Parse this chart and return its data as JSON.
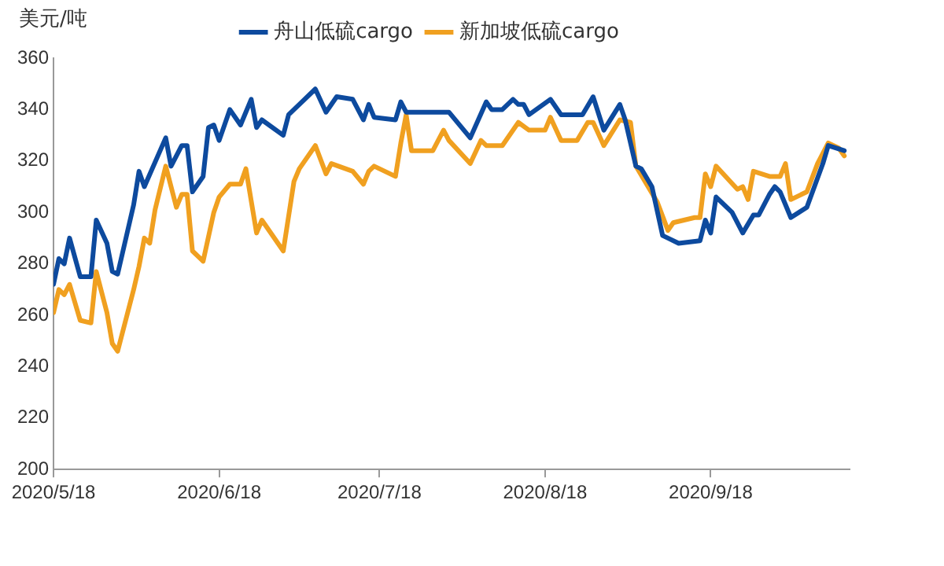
{
  "chart_data": {
    "type": "line",
    "ylabel": "美元/吨",
    "xlim": [
      "2020-05-18",
      "2020-10-14"
    ],
    "xticks": [
      {
        "value": "2020-05-18",
        "label": "2020/5/18"
      },
      {
        "value": "2020-06-18",
        "label": "2020/6/18"
      },
      {
        "value": "2020-07-18",
        "label": "2020/7/18"
      },
      {
        "value": "2020-08-18",
        "label": "2020/8/18"
      },
      {
        "value": "2020-09-18",
        "label": "2020/9/18"
      }
    ],
    "ylim": [
      200,
      360
    ],
    "yticks": [
      200,
      220,
      240,
      260,
      280,
      300,
      320,
      340,
      360
    ],
    "grid": false,
    "legend": "top",
    "marker": "none",
    "line_style": "solid",
    "series": [
      {
        "name": "舟山低硫cargo",
        "color": "#0d4a9e",
        "x": [
          "2020-05-18",
          "2020-05-19",
          "2020-05-20",
          "2020-05-21",
          "2020-05-23",
          "2020-05-25",
          "2020-05-26",
          "2020-05-28",
          "2020-05-29",
          "2020-05-30",
          "2020-06-02",
          "2020-06-03",
          "2020-06-04",
          "2020-06-08",
          "2020-06-09",
          "2020-06-11",
          "2020-06-12",
          "2020-06-13",
          "2020-06-15",
          "2020-06-16",
          "2020-06-17",
          "2020-06-18",
          "2020-06-20",
          "2020-06-22",
          "2020-06-24",
          "2020-06-25",
          "2020-06-26",
          "2020-06-30",
          "2020-07-01",
          "2020-07-03",
          "2020-07-06",
          "2020-07-08",
          "2020-07-10",
          "2020-07-13",
          "2020-07-15",
          "2020-07-16",
          "2020-07-17",
          "2020-07-21",
          "2020-07-22",
          "2020-07-23",
          "2020-07-30",
          "2020-07-31",
          "2020-08-04",
          "2020-08-07",
          "2020-08-08",
          "2020-08-10",
          "2020-08-12",
          "2020-08-13",
          "2020-08-14",
          "2020-08-15",
          "2020-08-19",
          "2020-08-21",
          "2020-08-25",
          "2020-08-27",
          "2020-08-29",
          "2020-09-01",
          "2020-09-02",
          "2020-09-04",
          "2020-09-05",
          "2020-09-07",
          "2020-09-09",
          "2020-09-10",
          "2020-09-12",
          "2020-09-16",
          "2020-09-17",
          "2020-09-18",
          "2020-09-19",
          "2020-09-22",
          "2020-09-24",
          "2020-09-26",
          "2020-09-27",
          "2020-09-29",
          "2020-09-30",
          "2020-10-01",
          "2020-10-03",
          "2020-10-06",
          "2020-10-09",
          "2020-10-10",
          "2020-10-13"
        ],
        "values": [
          272,
          282,
          280,
          290,
          275,
          275,
          297,
          288,
          277,
          276,
          303,
          316,
          310,
          329,
          318,
          326,
          326,
          308,
          314,
          333,
          334,
          328,
          340,
          334,
          344,
          333,
          336,
          330,
          338,
          342,
          348,
          339,
          345,
          344,
          336,
          342,
          337,
          336,
          343,
          339,
          339,
          339,
          329,
          343,
          340,
          340,
          344,
          342,
          342,
          338,
          344,
          338,
          338,
          345,
          332,
          342,
          336,
          318,
          317,
          310,
          291,
          290,
          288,
          289,
          297,
          292,
          306,
          300,
          292,
          299,
          299,
          307,
          310,
          308,
          298,
          302,
          319,
          326,
          324
        ]
      },
      {
        "name": "新加坡低硫cargo",
        "color": "#f0a020",
        "x": [
          "2020-05-18",
          "2020-05-19",
          "2020-05-20",
          "2020-05-21",
          "2020-05-23",
          "2020-05-25",
          "2020-05-26",
          "2020-05-28",
          "2020-05-29",
          "2020-05-30",
          "2020-06-02",
          "2020-06-03",
          "2020-06-04",
          "2020-06-05",
          "2020-06-06",
          "2020-06-08",
          "2020-06-10",
          "2020-06-11",
          "2020-06-12",
          "2020-06-13",
          "2020-06-15",
          "2020-06-17",
          "2020-06-18",
          "2020-06-20",
          "2020-06-22",
          "2020-06-23",
          "2020-06-25",
          "2020-06-26",
          "2020-06-30",
          "2020-07-02",
          "2020-07-03",
          "2020-07-06",
          "2020-07-08",
          "2020-07-09",
          "2020-07-13",
          "2020-07-15",
          "2020-07-16",
          "2020-07-17",
          "2020-07-21",
          "2020-07-22",
          "2020-07-23",
          "2020-07-24",
          "2020-07-28",
          "2020-07-30",
          "2020-07-31",
          "2020-08-04",
          "2020-08-06",
          "2020-08-07",
          "2020-08-10",
          "2020-08-13",
          "2020-08-15",
          "2020-08-18",
          "2020-08-19",
          "2020-08-21",
          "2020-08-24",
          "2020-08-26",
          "2020-08-27",
          "2020-08-29",
          "2020-09-01",
          "2020-09-03",
          "2020-09-04",
          "2020-09-08",
          "2020-09-10",
          "2020-09-11",
          "2020-09-13",
          "2020-09-15",
          "2020-09-16",
          "2020-09-17",
          "2020-09-18",
          "2020-09-19",
          "2020-09-23",
          "2020-09-24",
          "2020-09-25",
          "2020-09-26",
          "2020-09-29",
          "2020-10-01",
          "2020-10-02",
          "2020-10-03",
          "2020-10-06",
          "2020-10-08",
          "2020-10-10",
          "2020-10-12",
          "2020-10-13"
        ],
        "values": [
          261,
          270,
          268,
          272,
          258,
          257,
          277,
          261,
          249,
          246,
          270,
          279,
          290,
          288,
          301,
          318,
          302,
          307,
          307,
          285,
          281,
          300,
          306,
          311,
          311,
          317,
          292,
          297,
          285,
          312,
          317,
          326,
          315,
          319,
          316,
          311,
          316,
          318,
          314,
          327,
          338,
          324,
          324,
          332,
          328,
          319,
          328,
          326,
          326,
          335,
          332,
          332,
          337,
          328,
          328,
          335,
          335,
          326,
          336,
          335,
          318,
          304,
          293,
          296,
          297,
          298,
          298,
          315,
          310,
          318,
          309,
          310,
          305,
          316,
          314,
          314,
          319,
          305,
          308,
          319,
          327,
          325,
          322
        ]
      }
    ]
  }
}
